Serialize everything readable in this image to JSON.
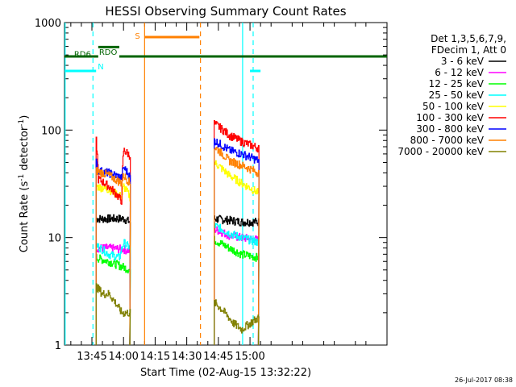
{
  "chart_data": {
    "type": "line",
    "title": "HESSI Observing Summary Count Rates",
    "xlabel": "Start Time (02-Aug-15 13:32:22)",
    "ylabel_main": "Count Rate (s",
    "ylabel_sup1": "-1",
    "ylabel_mid": " detector",
    "ylabel_sup2": "-1",
    "ylabel_end": ")",
    "yscale": "log",
    "ylim": [
      1,
      1000
    ],
    "xlim_min": [
      812,
      965
    ],
    "x_ticks": [
      {
        "min": 825,
        "label": "13:45"
      },
      {
        "min": 840,
        "label": "14:00"
      },
      {
        "min": 855,
        "label": "14:15"
      },
      {
        "min": 870,
        "label": "14:30"
      },
      {
        "min": 885,
        "label": "14:45"
      },
      {
        "min": 900,
        "label": "15:00"
      }
    ],
    "y_ticks": [
      {
        "value": 1,
        "label": "1"
      },
      {
        "value": 10,
        "label": "10"
      },
      {
        "value": 100,
        "label": "100"
      },
      {
        "value": 1000,
        "label": "1000"
      }
    ],
    "legend": {
      "header1": "Det 1,3,5,6,7,9,",
      "header2": "FDecim 1, Att 0",
      "placement": "right"
    },
    "series": [
      {
        "name": "3 - 6 keV",
        "color": "#000000",
        "seg1": [
          [
            827,
            15
          ],
          [
            833,
            15
          ],
          [
            840,
            15
          ],
          [
            843,
            14
          ]
        ],
        "seg2": [
          [
            883,
            15
          ],
          [
            890,
            14.5
          ],
          [
            896,
            14
          ],
          [
            904,
            14
          ]
        ]
      },
      {
        "name": "6 - 12 keV",
        "color": "#ff00ff",
        "seg1": [
          [
            827,
            8
          ],
          [
            833,
            8
          ],
          [
            840,
            7.8
          ],
          [
            843,
            7.5
          ]
        ],
        "seg2": [
          [
            883,
            12
          ],
          [
            890,
            10.5
          ],
          [
            896,
            10
          ],
          [
            904,
            9.5
          ]
        ]
      },
      {
        "name": "12 - 25 keV",
        "color": "#00ff00",
        "seg1": [
          [
            827,
            6.5
          ],
          [
            833,
            6
          ],
          [
            838,
            5.5
          ],
          [
            843,
            5
          ]
        ],
        "seg2": [
          [
            883,
            9.5
          ],
          [
            890,
            8
          ],
          [
            896,
            7
          ],
          [
            904,
            6.5
          ]
        ]
      },
      {
        "name": "25 - 50 keV",
        "color": "#00ffff",
        "seg1": [
          [
            827,
            8.5
          ],
          [
            833,
            7
          ],
          [
            838,
            6.5
          ],
          [
            840,
            9
          ],
          [
            843,
            8
          ]
        ],
        "seg2": [
          [
            883,
            13
          ],
          [
            890,
            11
          ],
          [
            896,
            10
          ],
          [
            904,
            9
          ]
        ]
      },
      {
        "name": "50 - 100 keV",
        "color": "#ffff00",
        "seg1": [
          [
            827,
            30
          ],
          [
            833,
            28
          ],
          [
            839,
            24
          ],
          [
            840,
            30
          ],
          [
            843,
            24
          ]
        ],
        "seg2": [
          [
            883,
            50
          ],
          [
            890,
            38
          ],
          [
            896,
            32
          ],
          [
            904,
            26
          ]
        ]
      },
      {
        "name": "100 - 300 keV",
        "color": "#ff0000",
        "seg1": [
          [
            827,
            80
          ],
          [
            828,
            35
          ],
          [
            833,
            30
          ],
          [
            839,
            22
          ],
          [
            840,
            65
          ],
          [
            843,
            58
          ]
        ],
        "seg2": [
          [
            883,
            115
          ],
          [
            890,
            90
          ],
          [
            896,
            78
          ],
          [
            904,
            68
          ]
        ]
      },
      {
        "name": "300 - 800 keV",
        "color": "#0000ff",
        "seg1": [
          [
            827,
            50
          ],
          [
            828,
            42
          ],
          [
            833,
            40
          ],
          [
            839,
            36
          ],
          [
            840,
            45
          ],
          [
            843,
            37
          ]
        ],
        "seg2": [
          [
            883,
            80
          ],
          [
            890,
            65
          ],
          [
            896,
            60
          ],
          [
            904,
            52
          ]
        ]
      },
      {
        "name": "800 - 7000 keV",
        "color": "#ff8000",
        "seg1": [
          [
            827,
            42
          ],
          [
            833,
            38
          ],
          [
            839,
            32
          ],
          [
            840,
            38
          ],
          [
            843,
            32
          ]
        ],
        "seg2": [
          [
            883,
            70
          ],
          [
            890,
            52
          ],
          [
            896,
            47
          ],
          [
            904,
            40
          ]
        ]
      },
      {
        "name": "7000 - 20000 keV",
        "color": "#808000",
        "seg1": [
          [
            827,
            3.5
          ],
          [
            830,
            3
          ],
          [
            833,
            3
          ],
          [
            836,
            2.5
          ],
          [
            839,
            2
          ],
          [
            843,
            2
          ]
        ],
        "seg2": [
          [
            883,
            2.5
          ],
          [
            888,
            2
          ],
          [
            892,
            1.6
          ],
          [
            896,
            1.4
          ],
          [
            900,
            1.6
          ],
          [
            904,
            1.8
          ]
        ]
      }
    ],
    "flag_bars": [
      {
        "label": "N",
        "color": "#00ffff",
        "y_frac": 0.85,
        "segments": [
          [
            812,
            827
          ],
          [
            900,
            905
          ]
        ]
      },
      {
        "label": "RDO",
        "color": "#006400",
        "y_frac": 0.895,
        "segments": [
          [
            812,
            828
          ],
          [
            838,
            965
          ]
        ]
      },
      {
        "label": "RD6",
        "color": "#006400",
        "y_frac": 0.924,
        "segments": [
          [
            828,
            838
          ]
        ]
      },
      {
        "label": "S",
        "color": "#ff8000",
        "y_frac": 0.955,
        "segments": [
          [
            850,
            876
          ]
        ]
      }
    ],
    "vlines": [
      {
        "min": 812.3,
        "color": "#00ffff",
        "style": "solid"
      },
      {
        "min": 825.5,
        "color": "#00ffff",
        "style": "dashed"
      },
      {
        "min": 850.0,
        "color": "#ff8000",
        "style": "solid"
      },
      {
        "min": 876.5,
        "color": "#ff8000",
        "style": "dashed"
      },
      {
        "min": 896.5,
        "color": "#00ffff",
        "style": "solid"
      },
      {
        "min": 901.5,
        "color": "#00ffff",
        "style": "dashed"
      }
    ],
    "timestamp": "26-Jul-2017 08:38"
  }
}
